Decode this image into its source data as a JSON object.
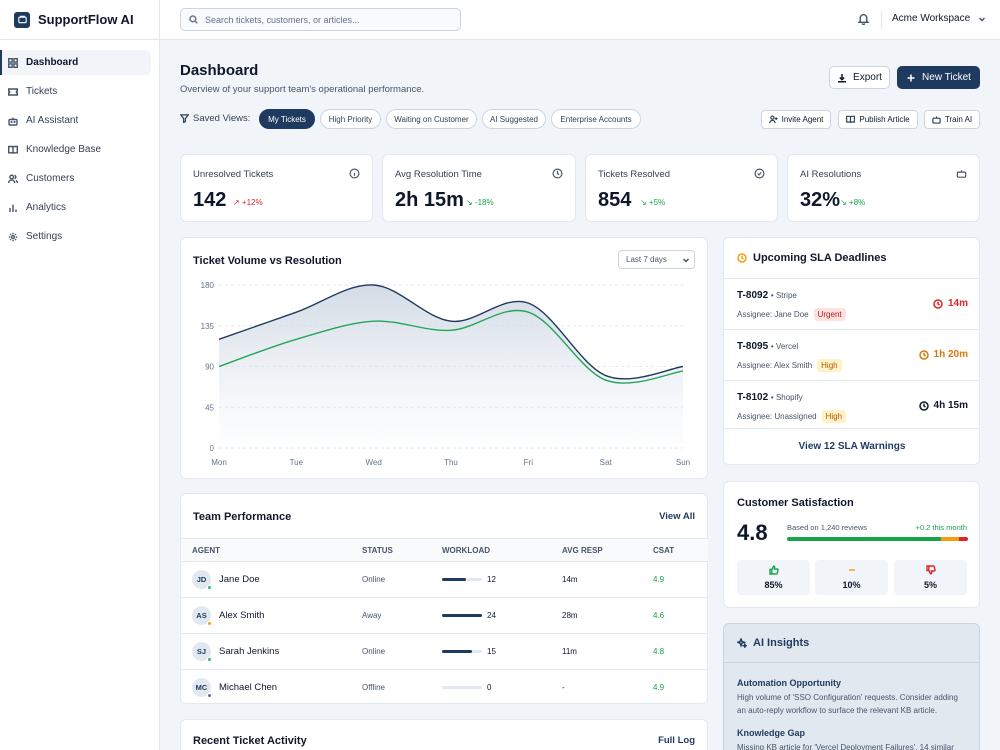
{
  "app": {
    "name": "SupportFlow AI"
  },
  "sidebar": {
    "items": [
      {
        "label": "Dashboard",
        "icon": "grid-icon",
        "active": true
      },
      {
        "label": "Tickets",
        "icon": "ticket-icon"
      },
      {
        "label": "AI Assistant",
        "icon": "bot-icon"
      },
      {
        "label": "Knowledge Base",
        "icon": "book-icon"
      },
      {
        "label": "Customers",
        "icon": "users-icon"
      },
      {
        "label": "Analytics",
        "icon": "bar-chart-icon"
      },
      {
        "label": "Settings",
        "icon": "gear-icon"
      }
    ]
  },
  "topbar": {
    "search_placeholder": "Search tickets, customers, or articles...",
    "workspace": "Acme Workspace"
  },
  "header": {
    "title": "Dashboard",
    "subtitle": "Overview of your support team's operational performance.",
    "export_label": "Export",
    "new_ticket_label": "New Ticket"
  },
  "filters": {
    "label": "Saved Views:",
    "views": [
      "My Tickets",
      "High Priority",
      "Waiting on Customer",
      "AI Suggested",
      "Enterprise Accounts"
    ],
    "active_view": "My Tickets",
    "actions": [
      "Invite Agent",
      "Publish Article",
      "Train AI"
    ]
  },
  "kpis": [
    {
      "label": "Unresolved Tickets",
      "value": "142",
      "delta": "↗ +12%",
      "trend": "bad",
      "icon": "info-icon"
    },
    {
      "label": "Avg Resolution Time",
      "value": "2h 15m",
      "delta": "↘ -18%",
      "trend": "good",
      "icon": "clock-icon"
    },
    {
      "label": "Tickets Resolved",
      "value": "854",
      "delta": "↘ +5%",
      "trend": "good",
      "icon": "check-circle-icon"
    },
    {
      "label": "AI Resolutions",
      "value": "32%",
      "delta": "↘ +8%",
      "trend": "good",
      "icon": "bot-icon"
    }
  ],
  "chart_data": {
    "type": "area",
    "title": "Ticket Volume vs Resolution",
    "range_label": "Last 7 days",
    "categories": [
      "Mon",
      "Tue",
      "Wed",
      "Thu",
      "Fri",
      "Sat",
      "Sun"
    ],
    "ylim": [
      0,
      180
    ],
    "yticks": [
      "180",
      "135",
      "90",
      "45",
      "0"
    ],
    "grid": true,
    "series": [
      {
        "values": [
          120,
          150,
          180,
          140,
          160,
          80,
          90
        ],
        "color": "#1e3a5f"
      },
      {
        "values": [
          90,
          120,
          140,
          130,
          150,
          75,
          85
        ],
        "color": "#22a559"
      }
    ]
  },
  "sla": {
    "title": "Upcoming SLA Deadlines",
    "items": [
      {
        "id": "T-8092",
        "company": "• Stripe",
        "assignee": "Assignee: Jane Doe",
        "priority": "Urgent",
        "time": "14m",
        "color": "#dc2626"
      },
      {
        "id": "T-8095",
        "company": "• Vercel",
        "assignee": "Assignee: Alex Smith",
        "priority": "High",
        "time": "1h 20m",
        "color": "#d97706"
      },
      {
        "id": "T-8102",
        "company": "• Shopify",
        "assignee": "Assignee: Unassigned",
        "priority": "High",
        "time": "4h 15m",
        "color": "#0f172a"
      }
    ],
    "link": "View 12 SLA Warnings"
  },
  "team": {
    "title": "Team Performance",
    "view_all": "View All",
    "columns": [
      "AGENT",
      "STATUS",
      "WORKLOAD",
      "AVG RESP",
      "CSAT"
    ],
    "rows": [
      {
        "initials": "JD",
        "name": "Jane Doe",
        "status": "Online",
        "workload": "12",
        "workload_pct": 60,
        "resp": "14m",
        "csat": "4.9",
        "dot": "#22c55e"
      },
      {
        "initials": "AS",
        "name": "Alex Smith",
        "status": "Away",
        "workload": "24",
        "workload_pct": 100,
        "resp": "28m",
        "csat": "4.6",
        "dot": "#f59e0b"
      },
      {
        "initials": "SJ",
        "name": "Sarah Jenkins",
        "status": "Online",
        "workload": "15",
        "workload_pct": 75,
        "resp": "11m",
        "csat": "4.8",
        "dot": "#22c55e"
      },
      {
        "initials": "MC",
        "name": "Michael Chen",
        "status": "Offline",
        "workload": "0",
        "workload_pct": 0,
        "resp": "-",
        "csat": "4.9",
        "dot": "#64748b"
      }
    ]
  },
  "csat": {
    "title": "Customer Satisfaction",
    "score": "4.8",
    "reviews": "Based on 1,240 reviews",
    "month_delta": "+0.2 this month",
    "breakdown": [
      {
        "pct": "85%",
        "icon": "thumbs-up-icon",
        "color": "#16a34a",
        "share": 85
      },
      {
        "pct": "10%",
        "icon": "neutral-icon",
        "color": "#f59e0b",
        "share": 10
      },
      {
        "pct": "5%",
        "icon": "thumbs-down-icon",
        "color": "#dc2626",
        "share": 5
      }
    ]
  },
  "recent": {
    "title": "Recent Ticket Activity",
    "link": "Full Log"
  },
  "insights": {
    "title": "AI Insights",
    "items": [
      {
        "title": "Automation Opportunity",
        "text": "High volume of 'SSO Configuration' requests. Consider adding an auto-reply workflow to surface the relevant KB article."
      },
      {
        "title": "Knowledge Gap",
        "text": "Missing KB article for 'Vercel Deployment Failures'. 14 similar"
      }
    ]
  }
}
